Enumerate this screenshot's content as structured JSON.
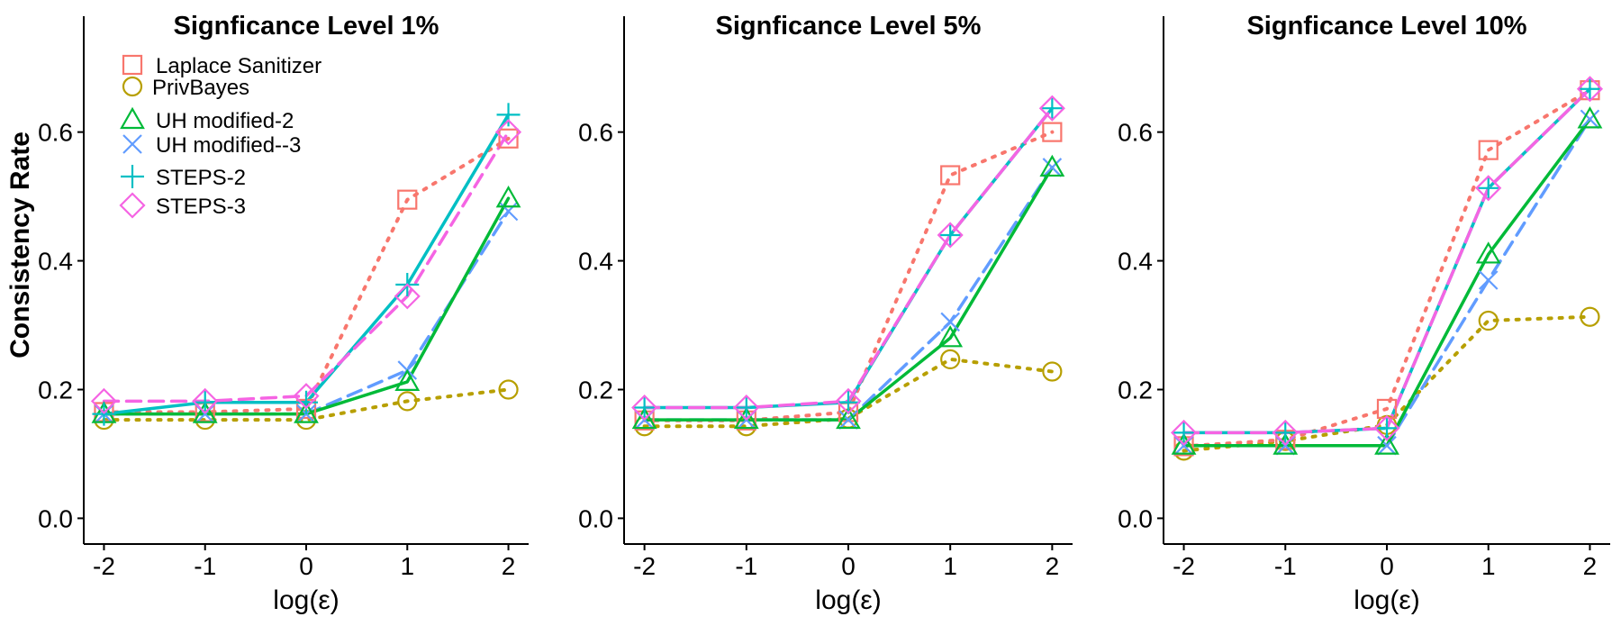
{
  "figure": {
    "ylabel": "Consistency Rate",
    "xlabel": "log(ε)"
  },
  "legend": {
    "position": "top-left of first panel",
    "entries": [
      {
        "name": "Laplace Sanitizer",
        "color": "#F8766D",
        "marker": "square",
        "linetype": "dotted"
      },
      {
        "name": "PrivBayes",
        "color": "#B79F00",
        "marker": "circle",
        "linetype": "dotted"
      },
      {
        "name": "UH modified-2",
        "color": "#00BA38",
        "marker": "triangle",
        "linetype": "solid"
      },
      {
        "name": "UH modified--3",
        "color": "#619CFF",
        "marker": "x",
        "linetype": "dashed"
      },
      {
        "name": "STEPS-2",
        "color": "#00BFC4",
        "marker": "plus",
        "linetype": "solid"
      },
      {
        "name": "STEPS-3",
        "color": "#F564E3",
        "marker": "diamond",
        "linetype": "dashed"
      }
    ]
  },
  "chart_data": [
    {
      "type": "line",
      "title": "Signficance Level 1%",
      "xlabel": "log(ε)",
      "ylabel": "Consistency Rate",
      "x": [
        -2,
        -1,
        0,
        1,
        2
      ],
      "x_ticks": [
        "-2",
        "-1",
        "0",
        "1",
        "2"
      ],
      "y_ticks": [
        "0.0",
        "0.2",
        "0.4",
        "0.6"
      ],
      "xlim": [
        -2.2,
        2.2
      ],
      "ylim": [
        -0.04,
        0.78
      ],
      "grid": false,
      "series": [
        {
          "name": "Laplace Sanitizer",
          "values": [
            0.165,
            0.165,
            0.17,
            0.495,
            0.59
          ]
        },
        {
          "name": "PrivBayes",
          "values": [
            0.153,
            0.153,
            0.153,
            0.182,
            0.2
          ]
        },
        {
          "name": "UH modified-2",
          "values": [
            0.162,
            0.162,
            0.162,
            0.212,
            0.497
          ]
        },
        {
          "name": "UH modified--3",
          "values": [
            0.162,
            0.162,
            0.162,
            0.23,
            0.477
          ]
        },
        {
          "name": "STEPS-2",
          "values": [
            0.162,
            0.18,
            0.18,
            0.363,
            0.627
          ]
        },
        {
          "name": "STEPS-3",
          "values": [
            0.182,
            0.182,
            0.19,
            0.345,
            0.6
          ]
        }
      ]
    },
    {
      "type": "line",
      "title": "Signficance Level 5%",
      "xlabel": "log(ε)",
      "ylabel": "",
      "x": [
        -2,
        -1,
        0,
        1,
        2
      ],
      "x_ticks": [
        "-2",
        "-1",
        "0",
        "1",
        "2"
      ],
      "y_ticks": [
        "0.0",
        "0.2",
        "0.4",
        "0.6"
      ],
      "xlim": [
        -2.2,
        2.2
      ],
      "ylim": [
        -0.04,
        0.78
      ],
      "grid": false,
      "series": [
        {
          "name": "Laplace Sanitizer",
          "values": [
            0.152,
            0.152,
            0.165,
            0.533,
            0.6
          ]
        },
        {
          "name": "PrivBayes",
          "values": [
            0.143,
            0.143,
            0.155,
            0.247,
            0.228
          ]
        },
        {
          "name": "UH modified-2",
          "values": [
            0.153,
            0.153,
            0.153,
            0.28,
            0.545
          ]
        },
        {
          "name": "UH modified--3",
          "values": [
            0.153,
            0.153,
            0.153,
            0.305,
            0.545
          ]
        },
        {
          "name": "STEPS-2",
          "values": [
            0.172,
            0.172,
            0.18,
            0.44,
            0.637
          ]
        },
        {
          "name": "STEPS-3",
          "values": [
            0.172,
            0.172,
            0.182,
            0.44,
            0.637
          ]
        }
      ]
    },
    {
      "type": "line",
      "title": "Signficance Level 10%",
      "xlabel": "log(ε)",
      "ylabel": "",
      "x": [
        -2,
        -1,
        0,
        1,
        2
      ],
      "x_ticks": [
        "-2",
        "-1",
        "0",
        "1",
        "2"
      ],
      "y_ticks": [
        "0.0",
        "0.2",
        "0.4",
        "0.6"
      ],
      "xlim": [
        -2.2,
        2.2
      ],
      "ylim": [
        -0.04,
        0.78
      ],
      "grid": false,
      "series": [
        {
          "name": "Laplace Sanitizer",
          "values": [
            0.112,
            0.122,
            0.17,
            0.572,
            0.665
          ]
        },
        {
          "name": "PrivBayes",
          "values": [
            0.105,
            0.12,
            0.145,
            0.307,
            0.313
          ]
        },
        {
          "name": "UH modified-2",
          "values": [
            0.113,
            0.113,
            0.113,
            0.41,
            0.62
          ]
        },
        {
          "name": "UH modified--3",
          "values": [
            0.113,
            0.113,
            0.113,
            0.37,
            0.62
          ]
        },
        {
          "name": "STEPS-2",
          "values": [
            0.133,
            0.133,
            0.14,
            0.513,
            0.667
          ]
        },
        {
          "name": "STEPS-3",
          "values": [
            0.133,
            0.133,
            0.14,
            0.513,
            0.667
          ]
        }
      ]
    }
  ]
}
